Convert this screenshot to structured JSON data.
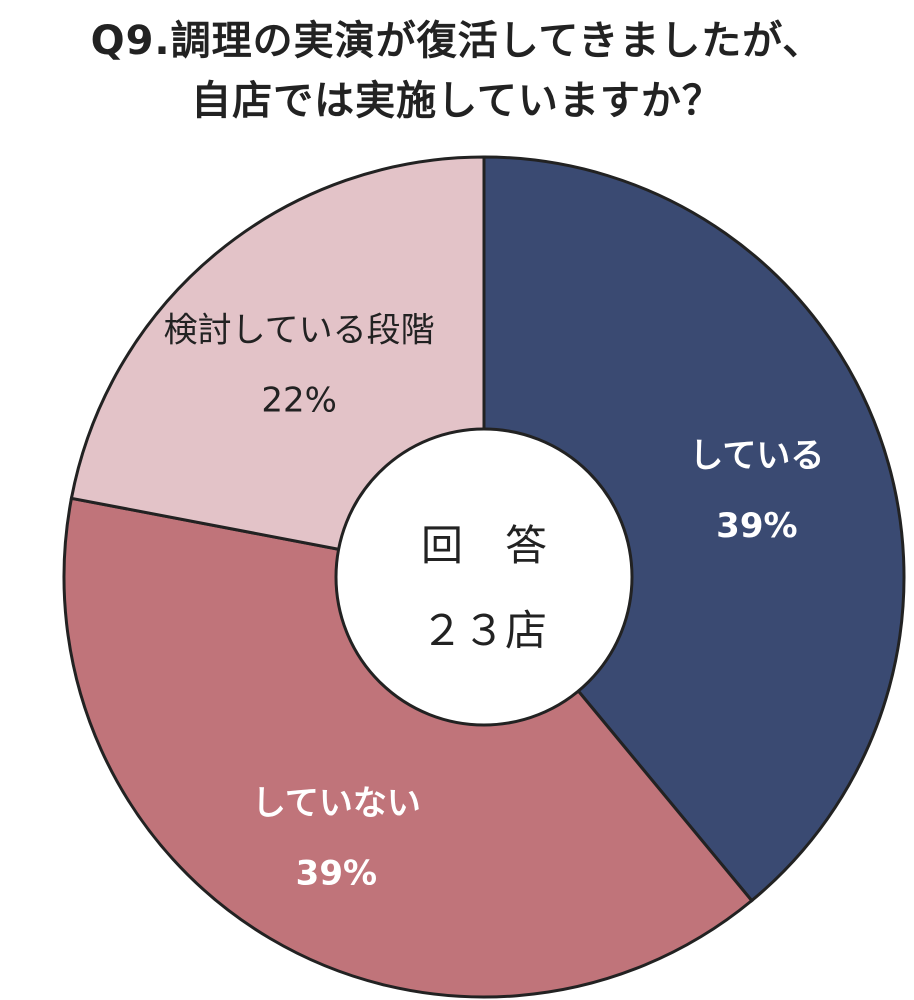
{
  "title_lines": [
    "Q9.調理の実演が復活してきましたが、",
    "自店では実施していますか？"
  ],
  "chart_data": {
    "type": "pie",
    "donut": true,
    "title": "Q9.調理の実演が復活してきましたが、自店では実施していますか？",
    "categories": [
      "している",
      "していない",
      "検討している段階"
    ],
    "values": [
      39,
      39,
      22
    ],
    "value_labels": [
      "39%",
      "39%",
      "22%"
    ],
    "colors": [
      "#3a4a72",
      "#c0747a",
      "#e3c3c8"
    ],
    "label_colors": [
      "#ffffff",
      "#ffffff",
      "#222222"
    ],
    "start": "12 o'clock, clockwise",
    "center_label": {
      "line1": "回　答",
      "line2": "２３店"
    }
  }
}
